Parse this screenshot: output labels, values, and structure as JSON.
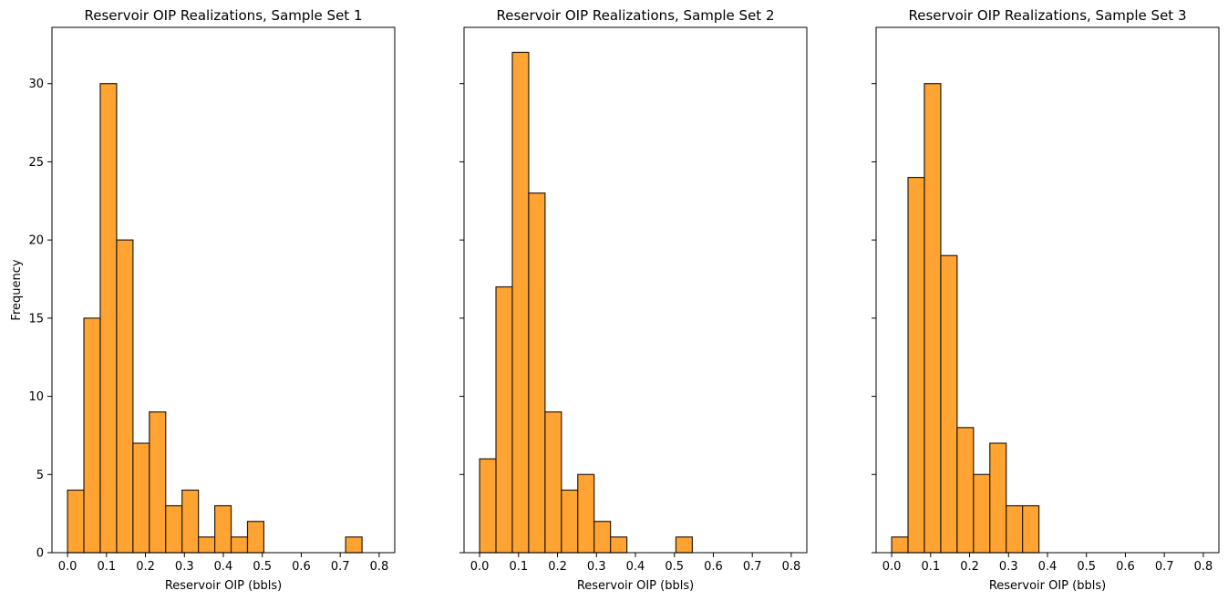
{
  "chart_data": [
    {
      "type": "bar",
      "title": "Reservoir OIP Realizations, Sample Set 1",
      "xlabel": "Reservoir OIP (bbls)",
      "ylabel": "Frequency",
      "xlim": [
        -0.04,
        0.84
      ],
      "ylim": [
        0,
        33.6
      ],
      "xticks": [
        "0.0",
        "0.1",
        "0.2",
        "0.3",
        "0.4",
        "0.5",
        "0.6",
        "0.7",
        "0.8"
      ],
      "yticks": [
        "0",
        "5",
        "10",
        "15",
        "20",
        "25",
        "30"
      ],
      "bin_edges": [
        0.0,
        0.042,
        0.084,
        0.126,
        0.168,
        0.21,
        0.252,
        0.294,
        0.336,
        0.378,
        0.42,
        0.462,
        0.504,
        0.546,
        0.588,
        0.63,
        0.672,
        0.714,
        0.756,
        0.798
      ],
      "values": [
        4,
        15,
        30,
        20,
        7,
        9,
        3,
        4,
        1,
        3,
        1,
        2,
        0,
        0,
        0,
        0,
        0,
        1,
        0
      ],
      "bar_color": "#ffa333",
      "edge_color": "#2b1d0e",
      "grid": false
    },
    {
      "type": "bar",
      "title": "Reservoir OIP Realizations, Sample Set 2",
      "xlabel": "Reservoir OIP (bbls)",
      "ylabel": "",
      "xlim": [
        -0.04,
        0.84
      ],
      "ylim": [
        0,
        33.6
      ],
      "xticks": [
        "0.0",
        "0.1",
        "0.2",
        "0.3",
        "0.4",
        "0.5",
        "0.6",
        "0.7",
        "0.8"
      ],
      "yticks": [
        "0",
        "5",
        "10",
        "15",
        "20",
        "25",
        "30"
      ],
      "bin_edges": [
        0.0,
        0.042,
        0.084,
        0.126,
        0.168,
        0.21,
        0.252,
        0.294,
        0.336,
        0.378,
        0.42,
        0.462,
        0.504,
        0.546,
        0.588,
        0.63,
        0.672,
        0.714,
        0.756,
        0.798
      ],
      "values": [
        6,
        17,
        32,
        23,
        9,
        4,
        5,
        2,
        1,
        0,
        0,
        0,
        1,
        0,
        0,
        0,
        0,
        0,
        0
      ],
      "bar_color": "#ffa333",
      "edge_color": "#2b1d0e",
      "grid": false
    },
    {
      "type": "bar",
      "title": "Reservoir OIP Realizations, Sample Set 3",
      "xlabel": "Reservoir OIP (bbls)",
      "ylabel": "",
      "xlim": [
        -0.04,
        0.84
      ],
      "ylim": [
        0,
        33.6
      ],
      "xticks": [
        "0.0",
        "0.1",
        "0.2",
        "0.3",
        "0.4",
        "0.5",
        "0.6",
        "0.7",
        "0.8"
      ],
      "yticks": [
        "0",
        "5",
        "10",
        "15",
        "20",
        "25",
        "30"
      ],
      "bin_edges": [
        0.0,
        0.042,
        0.084,
        0.126,
        0.168,
        0.21,
        0.252,
        0.294,
        0.336,
        0.378,
        0.42,
        0.462,
        0.504,
        0.546,
        0.588,
        0.63,
        0.672,
        0.714,
        0.756,
        0.798
      ],
      "values": [
        1,
        24,
        30,
        19,
        8,
        5,
        7,
        3,
        3,
        0,
        0,
        0,
        0,
        0,
        0,
        0,
        0,
        0,
        0
      ],
      "bar_color": "#ffa333",
      "edge_color": "#2b1d0e",
      "grid": false
    }
  ]
}
